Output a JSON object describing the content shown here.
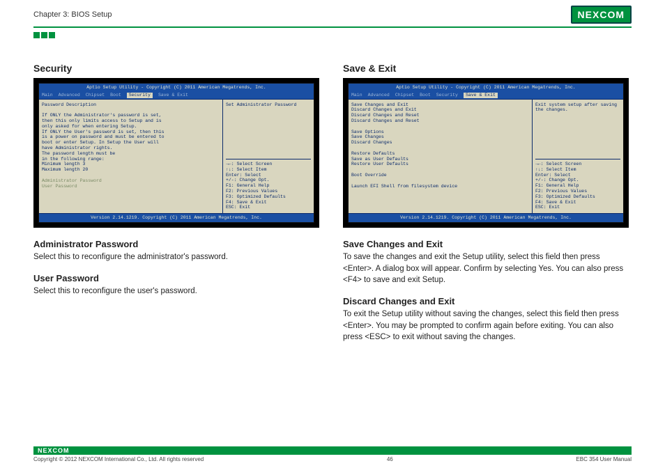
{
  "header": {
    "chapter": "Chapter 3: BIOS Setup",
    "logo_text": "NEXCOM"
  },
  "squares_count": 3,
  "footer": {
    "logo": "NEXCOM",
    "copyright": "Copyright © 2012 NEXCOM International Co., Ltd. All rights reserved",
    "page": "46",
    "manual": "EBC 354 User Manual"
  },
  "bios_common": {
    "title": "Aptio Setup Utility - Copyright (C) 2011 American Megatrends, Inc.",
    "tabs": [
      "Main",
      "Advanced",
      "Chipset",
      "Boot",
      "Security",
      "Save & Exit"
    ],
    "footer": "Version 2.14.1219. Copyright (C) 2011 American Megatrends, Inc.",
    "keys": [
      "→←: Select Screen",
      "↑↓: Select Item",
      "Enter: Select",
      "+/-: Change Opt.",
      "F1: General Help",
      "F2: Previous Values",
      "F3: Optimized Defaults",
      "F4: Save & Exit",
      "ESC: Exit"
    ]
  },
  "left": {
    "title": "Security",
    "bios": {
      "active_tab": "Security",
      "help_top": "Set Administrator Password",
      "left_lines": [
        "Password Description",
        "",
        "If ONLY the Administrator's password is set,",
        "then this only limits access to Setup and is",
        "only asked for when entering Setup.",
        "If ONLY the User's password is set, then this",
        "is a power on password and must be entered to",
        "boot or enter Setup. In Setup the User will",
        "have Administrator rights.",
        "The password length must be",
        "in the following range:",
        "Minimum length                  3",
        "Maximum length                 20",
        "",
        "Administrator Password",
        "User Password"
      ]
    },
    "subs": [
      {
        "heading": "Administrator Password",
        "body": "Select this to reconfigure the administrator's password."
      },
      {
        "heading": "User Password",
        "body": "Select this to reconfigure the user's password."
      }
    ]
  },
  "right": {
    "title": "Save & Exit",
    "bios": {
      "active_tab": "Save & Exit",
      "help_top": "Exit system setup after saving the changes.",
      "left_lines": [
        "Save Changes and Exit",
        "Discard Changes and Exit",
        "Discard Changes and Reset",
        "Discard Changes and Reset",
        "",
        "Save Options",
        "Save Changes",
        "Discard Changes",
        "",
        "Restore Defaults",
        "Save as User Defaults",
        "Restore User Defaults",
        "",
        "Boot Override",
        "",
        "Launch EFI Shell from filesystem device"
      ]
    },
    "subs": [
      {
        "heading": "Save Changes and Exit",
        "body": "To save the changes and exit the Setup utility, select this field then press <Enter>. A dialog box will appear. Confirm by selecting Yes. You can also press <F4> to save and exit Setup."
      },
      {
        "heading": "Discard Changes and Exit",
        "body": "To exit the Setup utility without saving the changes, select this field then press <Enter>. You may be prompted to confirm again before exiting. You can also press <ESC> to exit without saving the changes."
      }
    ]
  }
}
